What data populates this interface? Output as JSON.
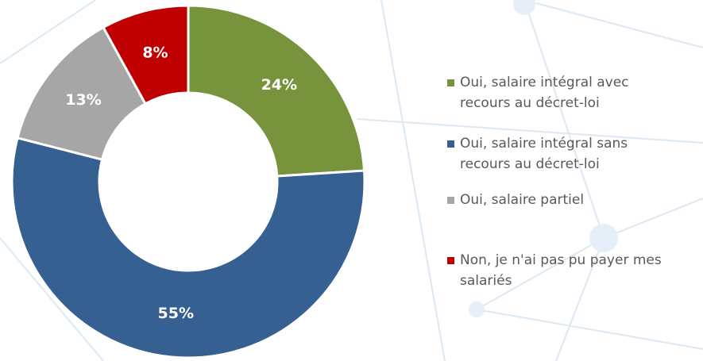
{
  "chart_data": {
    "type": "donut",
    "categories": [
      "Oui, salaire intégral avec recours au décret-loi",
      "Oui, salaire intégral sans recours au décret-loi",
      "Oui, salaire partiel",
      "Non, je n'ai pas pu payer mes salariés"
    ],
    "values": [
      24,
      55,
      13,
      8
    ],
    "value_labels": [
      "24%",
      "55%",
      "13%",
      "8%"
    ],
    "colors": [
      "#77933c",
      "#376092",
      "#a6a6a6",
      "#c00000"
    ],
    "legend": "right"
  }
}
